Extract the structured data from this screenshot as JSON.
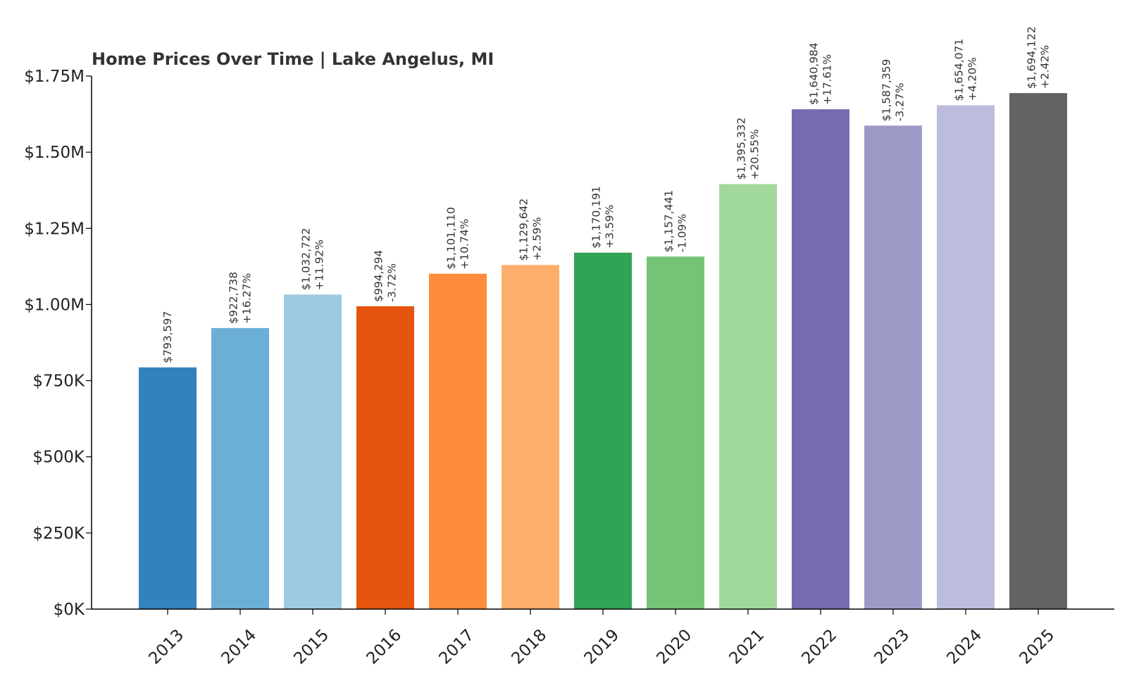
{
  "chart_data": {
    "type": "bar",
    "title": "Home Prices Over Time | Lake Angelus, MI",
    "xlabel": "",
    "ylabel": "",
    "categories": [
      "2013",
      "2014",
      "2015",
      "2016",
      "2017",
      "2018",
      "2019",
      "2020",
      "2021",
      "2022",
      "2023",
      "2024",
      "2025"
    ],
    "values": [
      793597,
      922738,
      1032722,
      994294,
      1101110,
      1129642,
      1170191,
      1157441,
      1395332,
      1640984,
      1587359,
      1654071,
      1694122
    ],
    "value_labels": [
      "$793,597",
      "$922,738",
      "$1,032,722",
      "$994,294",
      "$1,101,110",
      "$1,129,642",
      "$1,170,191",
      "$1,157,441",
      "$1,395,332",
      "$1,640,984",
      "$1,587,359",
      "$1,654,071",
      "$1,694,122"
    ],
    "change_labels": [
      "",
      "+16.27%",
      "+11.92%",
      "-3.72%",
      "+10.74%",
      "+2.59%",
      "+3.59%",
      "-1.09%",
      "+20.55%",
      "+17.61%",
      "-3.27%",
      "+4.20%",
      "+2.42%"
    ],
    "colors": [
      "#3182bd",
      "#6baed6",
      "#9ecae1",
      "#e6550d",
      "#fd8d3c",
      "#fdae6b",
      "#31a354",
      "#74c476",
      "#a1d99b",
      "#756bb1",
      "#9e9ac8",
      "#bcbddc",
      "#636363"
    ],
    "yticks": [
      0,
      250000,
      500000,
      750000,
      1000000,
      1250000,
      1500000,
      1750000
    ],
    "ytick_labels": [
      "$0K",
      "$250K",
      "$500K",
      "$750K",
      "$1.00M",
      "$1.25M",
      "$1.50M",
      "$1.75M"
    ],
    "ylim": [
      0,
      1750000
    ],
    "grid": false,
    "legend": "none"
  }
}
